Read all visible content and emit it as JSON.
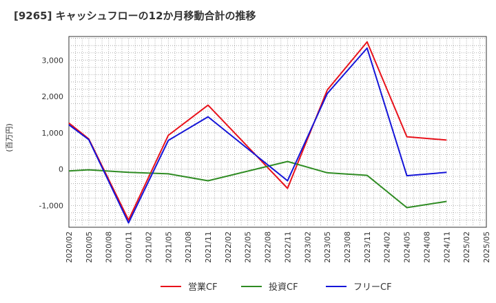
{
  "chart_data": {
    "type": "line",
    "title": "[9265]  キャッシュフローの12か月移動合計の推移",
    "ylabel": "(百万円)",
    "xlabel": "",
    "categories": [
      "2020/02",
      "2020/05",
      "2020/08",
      "2020/11",
      "2021/02",
      "2021/05",
      "2021/08",
      "2021/11",
      "2022/02",
      "2022/05",
      "2022/08",
      "2022/11",
      "2023/02",
      "2023/05",
      "2023/08",
      "2023/11",
      "2024/02",
      "2024/05",
      "2024/08",
      "2024/11",
      "2025/02",
      "2025/05"
    ],
    "ylim": [
      -1600,
      3650
    ],
    "yticks": [
      -1000,
      0,
      1000,
      2000,
      3000
    ],
    "ytick_labels": [
      "-1,000",
      "0",
      "1,000",
      "2,000",
      "3,000"
    ],
    "grid": true,
    "legend_position": "bottom",
    "series": [
      {
        "name": "営業CF",
        "color": "#e8111a",
        "values": [
          1270,
          830,
          null,
          -1400,
          null,
          930,
          null,
          1760,
          null,
          null,
          null,
          -530,
          null,
          2180,
          null,
          3500,
          null,
          890,
          null,
          800,
          null,
          null
        ]
      },
      {
        "name": "投資CF",
        "color": "#2e8b22",
        "values": [
          -50,
          -20,
          null,
          -90,
          null,
          -130,
          null,
          -320,
          null,
          null,
          null,
          210,
          null,
          -100,
          null,
          -170,
          null,
          -1060,
          null,
          -890,
          null,
          null
        ]
      },
      {
        "name": "フリーCF",
        "color": "#1414d8",
        "values": [
          1220,
          810,
          null,
          -1480,
          null,
          790,
          null,
          1440,
          null,
          null,
          null,
          -320,
          null,
          2080,
          null,
          3330,
          null,
          -180,
          null,
          -90,
          null,
          null
        ]
      }
    ]
  }
}
